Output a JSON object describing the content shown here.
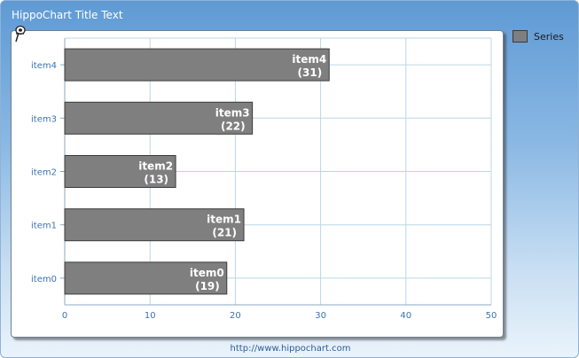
{
  "title": "HippoChart Title Text",
  "footer": {
    "link": "http://www.hippochart.com"
  },
  "colors": {
    "bar": "#7f7f7f",
    "bar_border": "#3a3a3a",
    "grid": "#bcd6e6",
    "axis_text": "#3b73b0"
  },
  "chart_data": {
    "type": "bar",
    "orientation": "horizontal",
    "categories": [
      "item0",
      "item1",
      "item2",
      "item3",
      "item4"
    ],
    "series": [
      {
        "name": "Series",
        "values": [
          19,
          21,
          13,
          22,
          31
        ]
      }
    ],
    "xlim": [
      0,
      50
    ],
    "xticks": [
      0,
      10,
      20,
      30,
      40,
      50
    ],
    "grid": true,
    "legend": "top-right",
    "data_labels": true
  }
}
